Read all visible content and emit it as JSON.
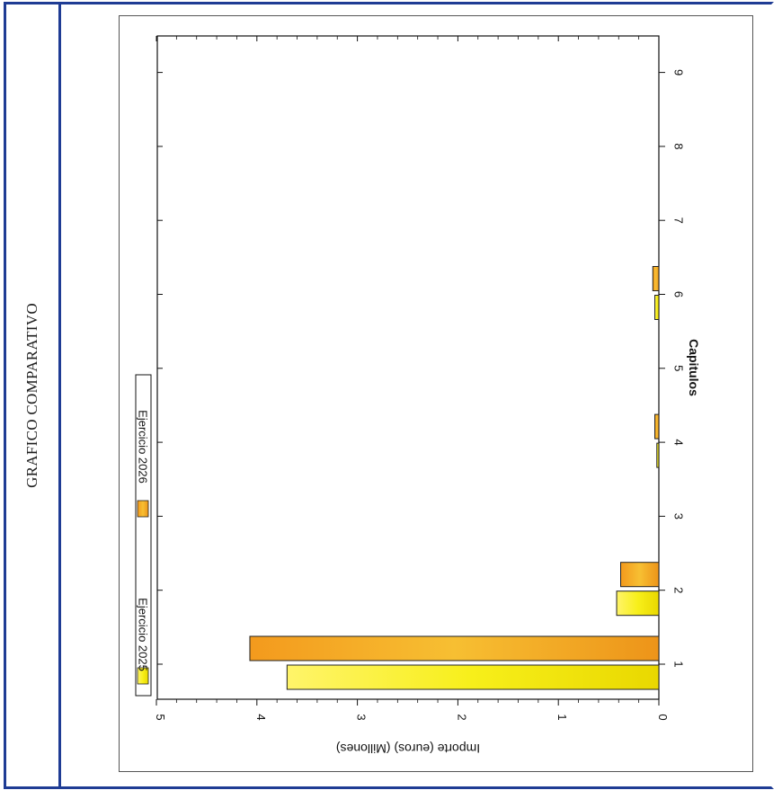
{
  "page": {
    "side_title": "GRAFICO COMPARATIVO"
  },
  "chart_data": {
    "type": "bar",
    "orientation": "rotated -90° (categories run along the page's vertical axis)",
    "title": "",
    "xlabel": "Capitulos",
    "ylabel": "Importe (euros) (Millones)",
    "categories": [
      "1",
      "2",
      "3",
      "4",
      "5",
      "6",
      "7",
      "8",
      "9"
    ],
    "ylim": [
      0,
      5
    ],
    "yticks": [
      "0",
      "1",
      "2",
      "3",
      "4",
      "5"
    ],
    "series": [
      {
        "name": "Ejercicio 2025",
        "color": "#f7ef1a",
        "values": [
          3.7,
          0.42,
          0,
          0.02,
          0,
          0.04,
          0,
          0,
          0
        ]
      },
      {
        "name": "Ejercicio 2026",
        "color": "#f0a11e",
        "values": [
          4.07,
          0.38,
          0,
          0.04,
          0,
          0.06,
          0,
          0,
          0
        ]
      }
    ],
    "legend": {
      "placement": "top-left"
    },
    "grid": false
  }
}
